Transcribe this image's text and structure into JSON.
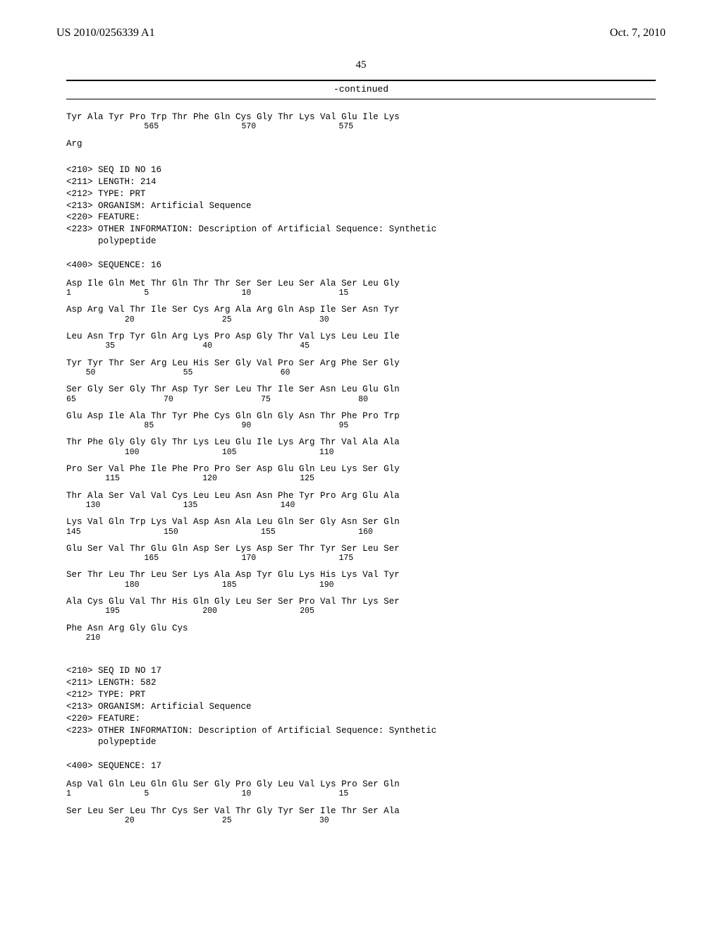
{
  "header": {
    "pub_number": "US 2010/0256339 A1",
    "pub_date": "Oct. 7, 2010"
  },
  "page_number": "45",
  "continued_label": "-continued",
  "seq_tail": {
    "row": "Tyr Ala Tyr Pro Trp Thr Phe Gln Cys Gly Thr Lys Val Glu Ile Lys",
    "nums": "                565                 570                 575",
    "arg": "Arg"
  },
  "seq16": {
    "header": [
      "<210> SEQ ID NO 16",
      "<211> LENGTH: 214",
      "<212> TYPE: PRT",
      "<213> ORGANISM: Artificial Sequence",
      "<220> FEATURE:",
      "<223> OTHER INFORMATION: Description of Artificial Sequence: Synthetic",
      "      polypeptide",
      "",
      "<400> SEQUENCE: 16"
    ],
    "rows": [
      {
        "aa": "Asp Ile Gln Met Thr Gln Thr Thr Ser Ser Leu Ser Ala Ser Leu Gly",
        "n": "1               5                   10                  15"
      },
      {
        "aa": "Asp Arg Val Thr Ile Ser Cys Arg Ala Arg Gln Asp Ile Ser Asn Tyr",
        "n": "            20                  25                  30"
      },
      {
        "aa": "Leu Asn Trp Tyr Gln Arg Lys Pro Asp Gly Thr Val Lys Leu Leu Ile",
        "n": "        35                  40                  45"
      },
      {
        "aa": "Tyr Tyr Thr Ser Arg Leu His Ser Gly Val Pro Ser Arg Phe Ser Gly",
        "n": "    50                  55                  60"
      },
      {
        "aa": "Ser Gly Ser Gly Thr Asp Tyr Ser Leu Thr Ile Ser Asn Leu Glu Gln",
        "n": "65                  70                  75                  80"
      },
      {
        "aa": "Glu Asp Ile Ala Thr Tyr Phe Cys Gln Gln Gly Asn Thr Phe Pro Trp",
        "n": "                85                  90                  95"
      },
      {
        "aa": "Thr Phe Gly Gly Gly Thr Lys Leu Glu Ile Lys Arg Thr Val Ala Ala",
        "n": "            100                 105                 110"
      },
      {
        "aa": "Pro Ser Val Phe Ile Phe Pro Pro Ser Asp Glu Gln Leu Lys Ser Gly",
        "n": "        115                 120                 125"
      },
      {
        "aa": "Thr Ala Ser Val Val Cys Leu Leu Asn Asn Phe Tyr Pro Arg Glu Ala",
        "n": "    130                 135                 140"
      },
      {
        "aa": "Lys Val Gln Trp Lys Val Asp Asn Ala Leu Gln Ser Gly Asn Ser Gln",
        "n": "145                 150                 155                 160"
      },
      {
        "aa": "Glu Ser Val Thr Glu Gln Asp Ser Lys Asp Ser Thr Tyr Ser Leu Ser",
        "n": "                165                 170                 175"
      },
      {
        "aa": "Ser Thr Leu Thr Leu Ser Lys Ala Asp Tyr Glu Lys His Lys Val Tyr",
        "n": "            180                 185                 190"
      },
      {
        "aa": "Ala Cys Glu Val Thr His Gln Gly Leu Ser Ser Pro Val Thr Lys Ser",
        "n": "        195                 200                 205"
      },
      {
        "aa": "Phe Asn Arg Gly Glu Cys",
        "n": "    210"
      }
    ]
  },
  "seq17": {
    "header": [
      "<210> SEQ ID NO 17",
      "<211> LENGTH: 582",
      "<212> TYPE: PRT",
      "<213> ORGANISM: Artificial Sequence",
      "<220> FEATURE:",
      "<223> OTHER INFORMATION: Description of Artificial Sequence: Synthetic",
      "      polypeptide",
      "",
      "<400> SEQUENCE: 17"
    ],
    "rows": [
      {
        "aa": "Asp Val Gln Leu Gln Glu Ser Gly Pro Gly Leu Val Lys Pro Ser Gln",
        "n": "1               5                   10                  15"
      },
      {
        "aa": "Ser Leu Ser Leu Thr Cys Ser Val Thr Gly Tyr Ser Ile Thr Ser Ala",
        "n": "            20                  25                  30"
      }
    ]
  }
}
